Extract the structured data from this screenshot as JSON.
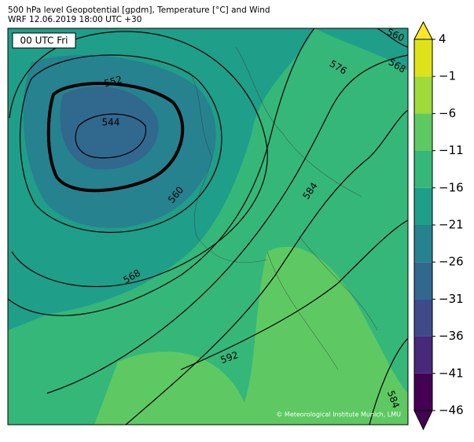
{
  "header": {
    "title": "500 hPa level Geopotential [gpdm], Temperature [°C] and Wind",
    "subtitle": "WRF 12.06.2019 18:00 UTC +30"
  },
  "panel_label": "00 UTC Fri",
  "credit": "© Meteorological Institute Munich, LMU",
  "contour_labels": [
    552,
    544,
    560,
    568,
    576,
    584,
    592,
    560,
    568,
    584
  ],
  "colorbar": {
    "ticks": [
      {
        "value": -46,
        "label": "−46"
      },
      {
        "value": -41,
        "label": "−41"
      },
      {
        "value": -36,
        "label": "−36"
      },
      {
        "value": -31,
        "label": "−31"
      },
      {
        "value": -26,
        "label": "−26"
      },
      {
        "value": -21,
        "label": "−21"
      },
      {
        "value": -16,
        "label": "−16"
      },
      {
        "value": -11,
        "label": "−11"
      },
      {
        "value": -6,
        "label": "−6"
      },
      {
        "value": -1,
        "label": "−1"
      },
      4
    ],
    "colors": [
      "#440154",
      "#482878",
      "#3e4a89",
      "#31688e",
      "#26828e",
      "#1f9e89",
      "#35b779",
      "#5ec962",
      "#a0da39",
      "#dde318"
    ],
    "under_color": "#440154",
    "over_color": "#fde725"
  }
}
